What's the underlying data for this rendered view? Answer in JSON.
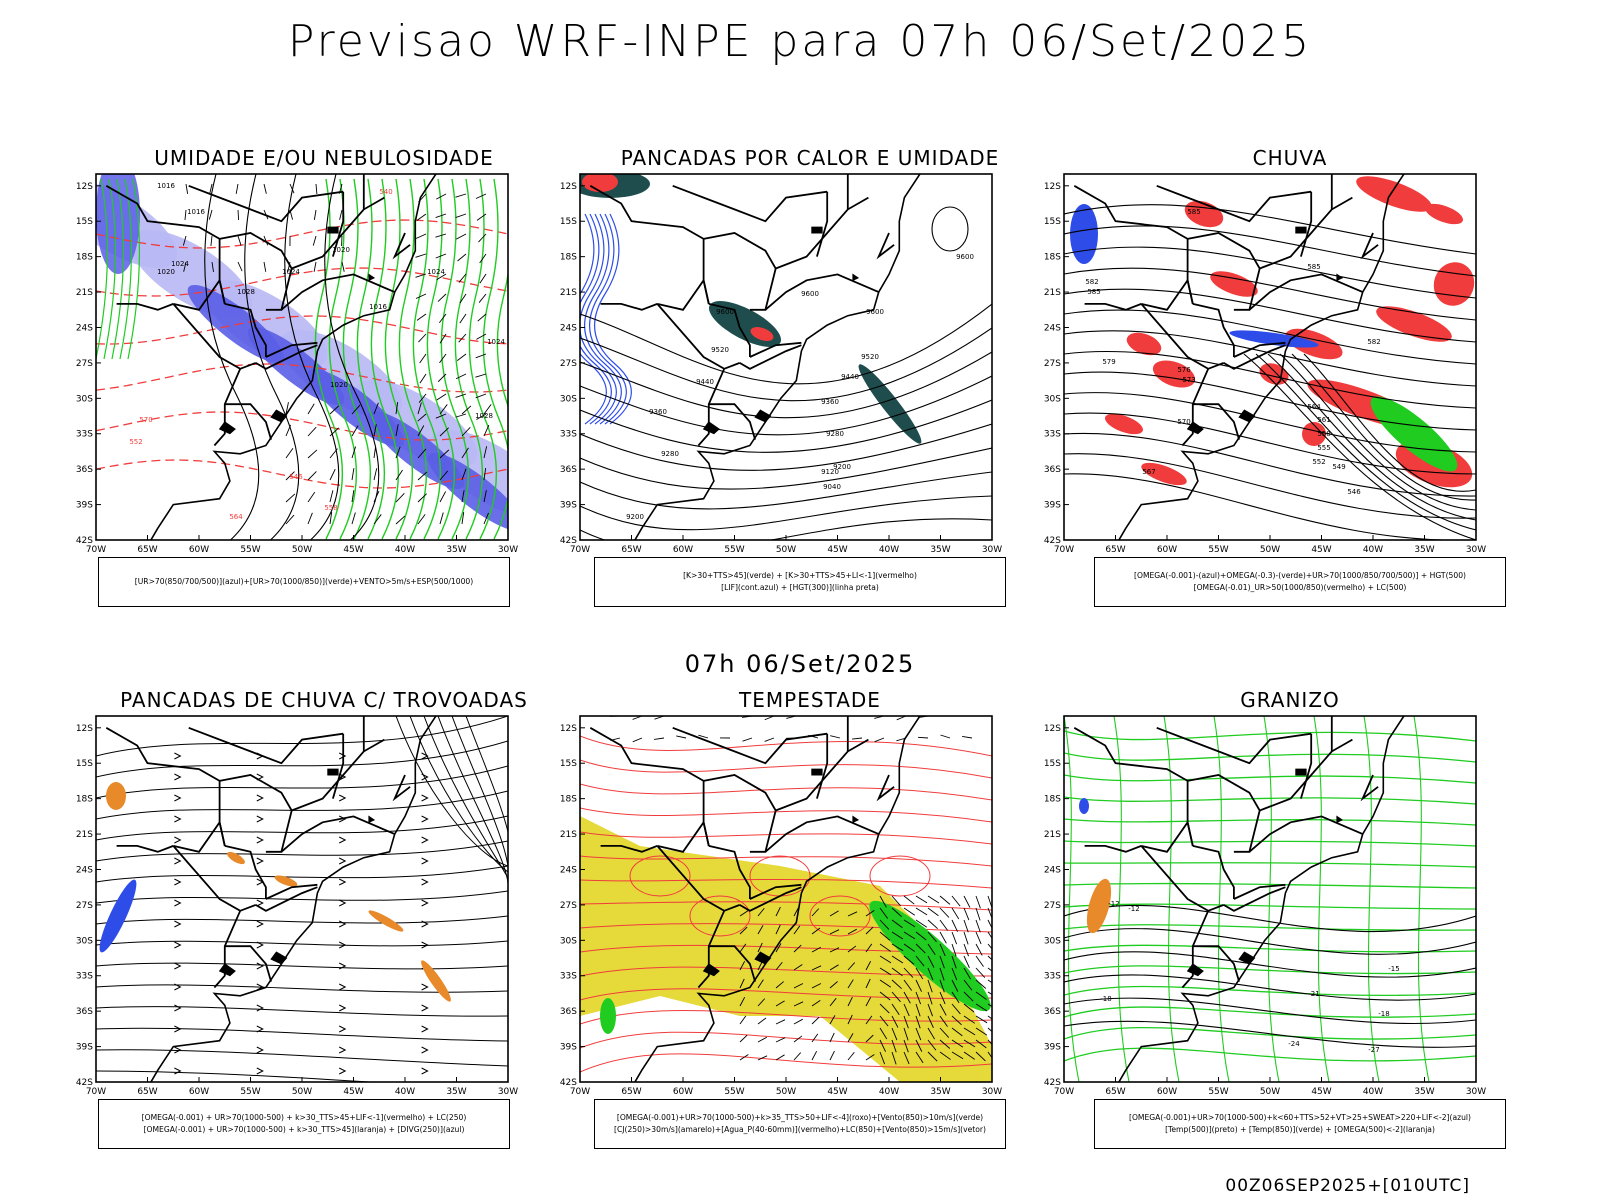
{
  "title": "Previsao WRF-INPE  para 07h 06/Set/2025",
  "middle_label": "07h 06/Set/2025",
  "footer": "00Z06SEP2025+[010UTC]",
  "axis": {
    "lat_labels": [
      "12S",
      "15S",
      "18S",
      "21S",
      "24S",
      "27S",
      "30S",
      "33S",
      "36S",
      "39S",
      "42S"
    ],
    "lon_labels": [
      "70W",
      "65W",
      "60W",
      "55W",
      "50W",
      "45W",
      "40W",
      "35W",
      "30W"
    ]
  },
  "colors": {
    "humidity_dark_blue": "#5a5ee6",
    "humidity_light_blue": "#b8b8f5",
    "green_contour": "#1fcc1f",
    "red_contour": "#f03c3c",
    "dark_teal": "#1f4d4d",
    "orange": "#e8892a",
    "yellow": "#e6d93a",
    "blue_points": "#2e4de8"
  },
  "panels": [
    {
      "id": "umidade",
      "title": "UMIDADE E/OU NEBULOSIDADE",
      "legend": [
        "[UR>70(850/700/500)](azul)+[UR>70(1000/850)](verde)+VENTO>5m/s+ESP(500/1000)"
      ],
      "contour_labels": [
        "1016",
        "1016",
        "1020",
        "1024",
        "1028",
        "1024",
        "1020",
        "1020",
        "1016",
        "1024",
        "1028",
        "1024",
        "570",
        "564",
        "558",
        "552",
        "546",
        "540"
      ]
    },
    {
      "id": "pancadas-calor",
      "title": "PANCADAS POR CALOR E UMIDADE",
      "legend": [
        "[K>30+TTS>45](verde) + [K>30+TTS>45+LI<-1](vermelho)",
        "[LIF](cont.azul) + [HGT(300)](linha preta)"
      ],
      "contour_labels": [
        "9600",
        "9600",
        "9600",
        "9520",
        "9520",
        "9440",
        "9440",
        "9360",
        "9360",
        "9280",
        "9280",
        "9200",
        "9200",
        "9120",
        "9040",
        "9600"
      ]
    },
    {
      "id": "chuva",
      "title": "CHUVA",
      "legend": [
        "[OMEGA(-0.001)-(azul)+OMEGA(-0.3)-(verde)+UR>70(1000/850/700/500)] + HGT(500)",
        "[OMEGA(-0.01)_UR>50(1000/850)(vermelho) + LC(500)"
      ],
      "contour_labels": [
        "585",
        "585",
        "582",
        "579",
        "576",
        "573",
        "570",
        "567",
        "564",
        "561",
        "558",
        "555",
        "552",
        "549",
        "546",
        "585",
        "582"
      ]
    },
    {
      "id": "trovoadas",
      "title": "PANCADAS DE CHUVA C/ TROVOADAS",
      "legend": [
        "[OMEGA(-0.001) + UR>70(1000-500) + k>30_TTS>45+LIF<-1](vermelho) + LC(250)",
        "[OMEGA(-0.001) + UR>70(1000-500) + k>30_TTS>45](laranja) + [DIVG(250)](azul)"
      ],
      "contour_labels": []
    },
    {
      "id": "tempestade",
      "title": "TEMPESTADE",
      "legend": [
        "[OMEGA(-0.001)+UR>70(1000-500)+k>35_TTS>50+LIF<-4](roxo)+[Vento(850)>10m/s](verde)",
        "[CJ(250)>30m/s](amarelo)+[Agua_P(40-60mm)](vermelho)+LC(850)+[Vento(850)>15m/s](vetor)"
      ],
      "contour_labels": []
    },
    {
      "id": "granizo",
      "title": "GRANIZO",
      "legend": [
        "[OMEGA(-0.001)+UR>70(1000-500)+k<60+TTS>52+VT>25+SWEAT>220+LIF<-2](azul)",
        "[Temp(500)](preto) + [Temp(850)](verde) + [OMEGA(500)<-2](laranja)"
      ],
      "contour_labels": [
        "-12",
        "-12",
        "-15",
        "-18",
        "-18",
        "-21",
        "-24",
        "-27"
      ]
    }
  ]
}
